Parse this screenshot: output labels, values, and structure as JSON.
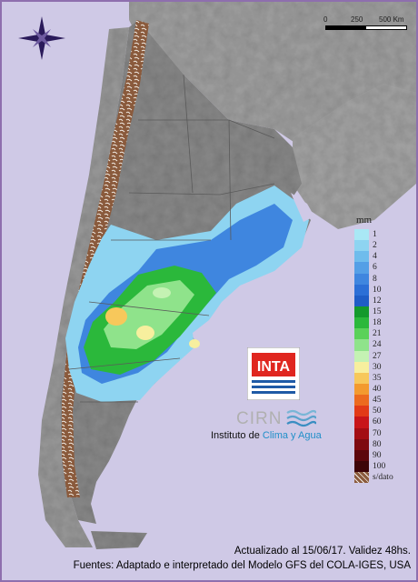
{
  "scale": {
    "zero": "0",
    "mid": "250",
    "end": "500 Km"
  },
  "legend": {
    "title": "mm",
    "items": [
      {
        "label": "1",
        "color": "#a9e8f5"
      },
      {
        "label": "2",
        "color": "#8ed4f1"
      },
      {
        "label": "4",
        "color": "#6fbcec"
      },
      {
        "label": "6",
        "color": "#549fe6"
      },
      {
        "label": "8",
        "color": "#3f86df"
      },
      {
        "label": "10",
        "color": "#2c6fd6"
      },
      {
        "label": "12",
        "color": "#1f5dc6"
      },
      {
        "label": "15",
        "color": "#149a2c"
      },
      {
        "label": "18",
        "color": "#2bb83b"
      },
      {
        "label": "21",
        "color": "#5ad15a"
      },
      {
        "label": "24",
        "color": "#8fe38b"
      },
      {
        "label": "27",
        "color": "#c4f2b3"
      },
      {
        "label": "30",
        "color": "#f7ef9e"
      },
      {
        "label": "35",
        "color": "#f7c85b"
      },
      {
        "label": "40",
        "color": "#f39a2e"
      },
      {
        "label": "45",
        "color": "#ec6a1e"
      },
      {
        "label": "50",
        "color": "#e23a17"
      },
      {
        "label": "60",
        "color": "#c8151a"
      },
      {
        "label": "70",
        "color": "#a30d14"
      },
      {
        "label": "80",
        "color": "#7e0a10"
      },
      {
        "label": "90",
        "color": "#5c070c"
      },
      {
        "label": "100",
        "color": "#3d0508"
      },
      {
        "label": "s/dato",
        "color": "#8a5a3c"
      }
    ]
  },
  "logos": {
    "inta": "INTA",
    "cirn": "CIRN"
  },
  "institute": {
    "prefix": "Instituto de ",
    "accent": "Clima y Agua"
  },
  "footer": {
    "line1": "Actualizado al 15/06/17. Validez 48hs.",
    "line2": "Fuentes: Adaptado e interpretado del Modelo GFS del COLA-IGES, USA"
  },
  "colors": {
    "sea": "#cfc9e6",
    "land": "#8f8f8f",
    "frame": "#8e6fae",
    "inta_red": "#e0261f",
    "inta_blue": "#1f5aa6"
  },
  "icons": {
    "compass": "compass-rose-icon",
    "waves": "waves-icon"
  }
}
